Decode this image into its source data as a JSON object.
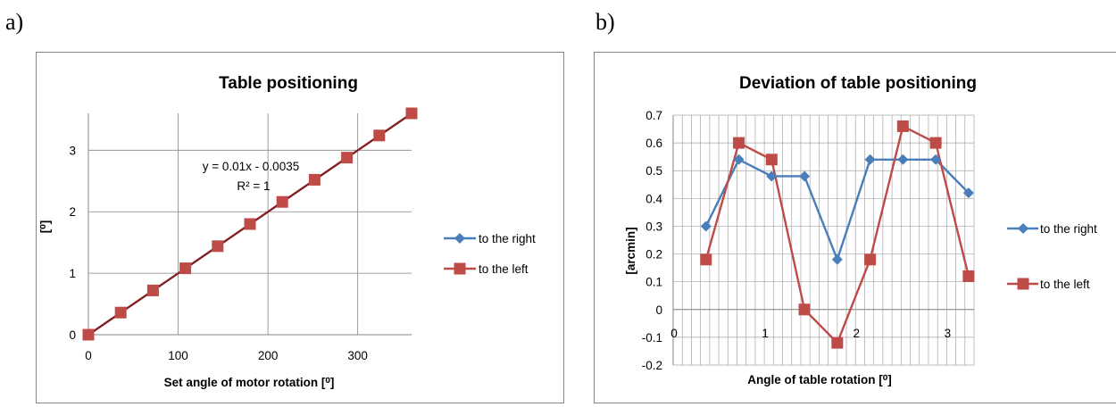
{
  "panels": [
    {
      "label": "a)"
    },
    {
      "label": "b)"
    }
  ],
  "chart_data": [
    {
      "type": "scatter",
      "title": "Table positioning",
      "xlabel": "Set angle of motor rotation [⁰]",
      "ylabel": "[⁰]",
      "xlim": [
        0,
        360
      ],
      "ylim": [
        0,
        3.6
      ],
      "xticks": [
        0,
        100,
        200,
        300
      ],
      "yticks": [
        0,
        1,
        2,
        3
      ],
      "grid": true,
      "legend_position": "right",
      "trendline": {
        "equation": "y = 0.01x - 0.0035",
        "r2": "R² = 1",
        "slope": 0.01,
        "intercept": -0.0035,
        "color": "#7f1f1f"
      },
      "series": [
        {
          "name": "to the right",
          "color": "#4a7ebb",
          "marker": "diamond",
          "x": [
            0,
            36,
            72,
            108,
            144,
            180,
            216,
            252,
            288,
            324,
            360
          ],
          "y": [
            0,
            0.36,
            0.72,
            1.08,
            1.44,
            1.8,
            2.16,
            2.52,
            2.88,
            3.24,
            3.6
          ]
        },
        {
          "name": "to the left",
          "color": "#be4b48",
          "marker": "square",
          "x": [
            0,
            36,
            72,
            108,
            144,
            180,
            216,
            252,
            288,
            324,
            360
          ],
          "y": [
            0,
            0.36,
            0.72,
            1.08,
            1.44,
            1.8,
            2.16,
            2.52,
            2.88,
            3.24,
            3.6
          ]
        }
      ]
    },
    {
      "type": "line",
      "title": "Deviation of table positioning",
      "xlabel": "Angle of table rotation [⁰]",
      "ylabel": "[arcmin]",
      "xlim": [
        0,
        3.3
      ],
      "ylim": [
        -0.2,
        0.7
      ],
      "xticks": [
        0,
        1,
        2,
        3
      ],
      "yticks": [
        -0.2,
        -0.1,
        0,
        0.1,
        0.2,
        0.3,
        0.4,
        0.5,
        0.6,
        0.7
      ],
      "ytick_labels": [
        "-0.2",
        "-0.1",
        "0",
        "0.1",
        "0.2",
        "0.3",
        "0.4",
        "0.5",
        "0.6",
        "0.7"
      ],
      "xgrid_step": 0.1,
      "grid": true,
      "legend_position": "right",
      "x": [
        0.36,
        0.72,
        1.08,
        1.44,
        1.8,
        2.16,
        2.52,
        2.88,
        3.24
      ],
      "series": [
        {
          "name": "to the right",
          "color": "#4a7ebb",
          "marker": "diamond",
          "values": [
            0.3,
            0.54,
            0.48,
            0.48,
            0.18,
            0.54,
            0.54,
            0.54,
            0.42
          ]
        },
        {
          "name": "to the left",
          "color": "#be4b48",
          "marker": "square",
          "values": [
            0.18,
            0.6,
            0.54,
            0.0,
            -0.12,
            0.18,
            0.66,
            0.6,
            0.12
          ]
        }
      ]
    }
  ]
}
